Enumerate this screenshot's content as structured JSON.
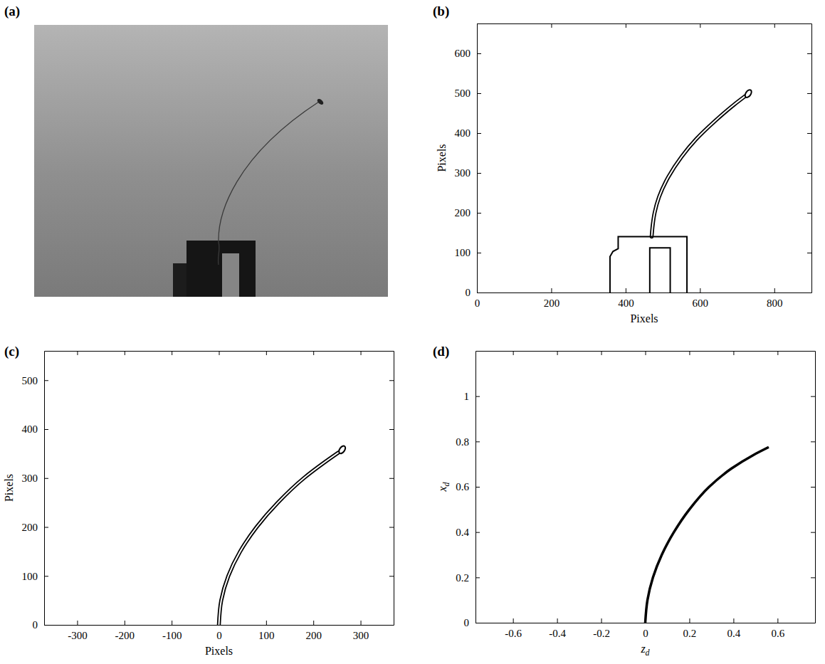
{
  "chart_data": [
    {
      "type": "image",
      "title": "(a)"
    },
    {
      "type": "line",
      "title": "(b)",
      "x_label": "Pixels",
      "y_label": "Pixels",
      "xlim": [
        0,
        900
      ],
      "ylim": [
        0,
        675
      ],
      "xticks": [
        0,
        200,
        400,
        600,
        800
      ],
      "yticks": [
        0,
        100,
        200,
        300,
        400,
        500,
        600
      ],
      "series": [
        {
          "line_style": "double",
          "x": [
            470,
            473,
            478,
            490,
            515,
            550,
            590,
            640,
            690,
            722
          ],
          "values": [
            140,
            170,
            200,
            240,
            290,
            340,
            385,
            430,
            470,
            493
          ]
        },
        {
          "marker": "ellipse",
          "x": [
            730
          ],
          "values": [
            499
          ]
        },
        {
          "line_style": "solid",
          "x": [
            358,
            358,
            366,
            380,
            380,
            565,
            565
          ],
          "values": [
            0,
            90,
            103,
            110,
            140,
            140,
            0
          ]
        },
        {
          "line_style": "solid",
          "x": [
            465,
            465,
            520,
            520
          ],
          "values": [
            0,
            112,
            112,
            0
          ]
        }
      ]
    },
    {
      "type": "line",
      "title": "(c)",
      "x_label": "Pixels",
      "y_label": "Pixels",
      "xlim": [
        -370,
        370
      ],
      "ylim": [
        0,
        560
      ],
      "xticks": [
        -300,
        -200,
        -100,
        0,
        100,
        200,
        300
      ],
      "yticks": [
        0,
        100,
        200,
        300,
        400,
        500
      ],
      "series": [
        {
          "line_style": "double",
          "x": [
            0,
            5,
            20,
            45,
            80,
            125,
            180,
            225,
            253
          ],
          "values": [
            0,
            50,
            100,
            150,
            200,
            250,
            300,
            333,
            352
          ]
        },
        {
          "marker": "ellipse",
          "x": [
            261
          ],
          "values": [
            358
          ]
        }
      ]
    },
    {
      "type": "line",
      "title": "(d)",
      "x_label": "zd",
      "y_label": "xd",
      "xlim": [
        -0.77,
        0.77
      ],
      "ylim": [
        0,
        1.2
      ],
      "xticks": [
        -0.6,
        -0.4,
        -0.2,
        0,
        0.2,
        0.4,
        0.6
      ],
      "yticks": [
        0,
        0.2,
        0.4,
        0.6,
        0.8,
        1
      ],
      "series": [
        {
          "line_style": "solid",
          "x": [
            0,
            0.01,
            0.035,
            0.075,
            0.13,
            0.2,
            0.29,
            0.39,
            0.49,
            0.56
          ],
          "values": [
            0,
            0.1,
            0.2,
            0.3,
            0.4,
            0.5,
            0.6,
            0.68,
            0.74,
            0.775
          ]
        }
      ]
    }
  ]
}
